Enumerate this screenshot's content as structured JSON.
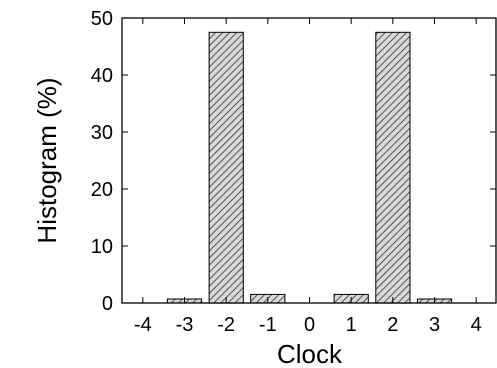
{
  "chart_data": {
    "type": "bar",
    "title": "",
    "xlabel": "Clock",
    "ylabel": "Histogram (%)",
    "categories": [
      "-4",
      "-3",
      "-2",
      "-1",
      "0",
      "1",
      "2",
      "3",
      "4"
    ],
    "values": [
      0,
      0.7,
      47.5,
      1.5,
      0,
      1.5,
      47.5,
      0.7,
      0
    ],
    "ylim": [
      0,
      50
    ],
    "yticks": [
      "0",
      "10",
      "20",
      "30",
      "40",
      "50"
    ],
    "grid": false,
    "bar_fill": "hatched",
    "colors": {
      "bar_fill": "#d9d9d9",
      "hatch": "#333333",
      "axis": "#000000"
    }
  }
}
